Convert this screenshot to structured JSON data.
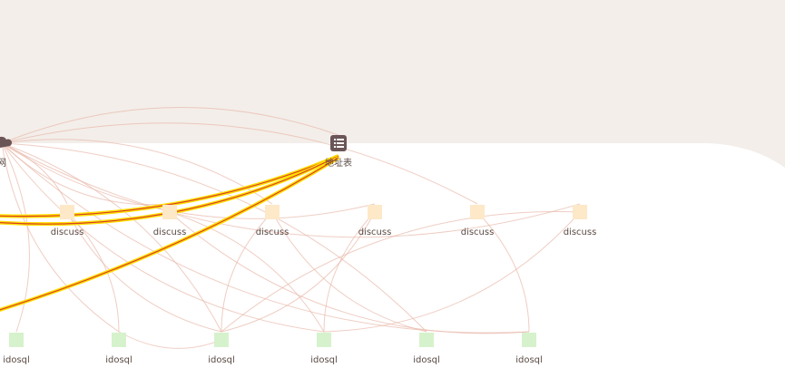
{
  "colors": {
    "band": "#f3eeea",
    "edge": "#e8b8aa",
    "highlight_outer": "#ffe000",
    "highlight_inner": "#d9402a",
    "discuss_node": "#fde8c8",
    "idosql_node": "#d6f2cc",
    "icon_node": "#6b5557"
  },
  "nodes": [
    {
      "id": "cloud",
      "label": "网",
      "icon": "cloud-icon"
    },
    {
      "id": "table",
      "label": "地址表",
      "icon": "list-table-icon"
    },
    {
      "id": "d1",
      "label": "discuss"
    },
    {
      "id": "d2",
      "label": "discuss"
    },
    {
      "id": "d3",
      "label": "discuss"
    },
    {
      "id": "d4",
      "label": "discuss"
    },
    {
      "id": "d5",
      "label": "discuss"
    },
    {
      "id": "d6",
      "label": "discuss"
    },
    {
      "id": "i1",
      "label": "idosql"
    },
    {
      "id": "i2",
      "label": "idosql"
    },
    {
      "id": "i3",
      "label": "idosql"
    },
    {
      "id": "i4",
      "label": "idosql"
    },
    {
      "id": "i5",
      "label": "idosql"
    },
    {
      "id": "i6",
      "label": "idosql"
    }
  ],
  "edges": [
    [
      "cloud",
      "d1"
    ],
    [
      "cloud",
      "d2"
    ],
    [
      "cloud",
      "d3"
    ],
    [
      "cloud",
      "d4"
    ],
    [
      "cloud",
      "d5"
    ],
    [
      "cloud",
      "d6"
    ],
    [
      "cloud",
      "i1"
    ],
    [
      "cloud",
      "i2"
    ],
    [
      "cloud",
      "i3"
    ],
    [
      "cloud",
      "i4"
    ],
    [
      "cloud",
      "i5"
    ],
    [
      "cloud",
      "i6"
    ],
    [
      "cloud",
      "table"
    ],
    [
      "d1",
      "i3"
    ],
    [
      "d2",
      "i4"
    ],
    [
      "d3",
      "i3"
    ],
    [
      "d4",
      "i3"
    ],
    [
      "d4",
      "i4"
    ],
    [
      "d5",
      "i6"
    ],
    [
      "d6",
      "i3"
    ],
    [
      "d6",
      "i4"
    ],
    [
      "d2",
      "i6"
    ],
    [
      "d1",
      "i2"
    ],
    [
      "d3",
      "i5"
    ],
    [
      "i3",
      "i2"
    ]
  ],
  "highlighted_edges_from": "table"
}
